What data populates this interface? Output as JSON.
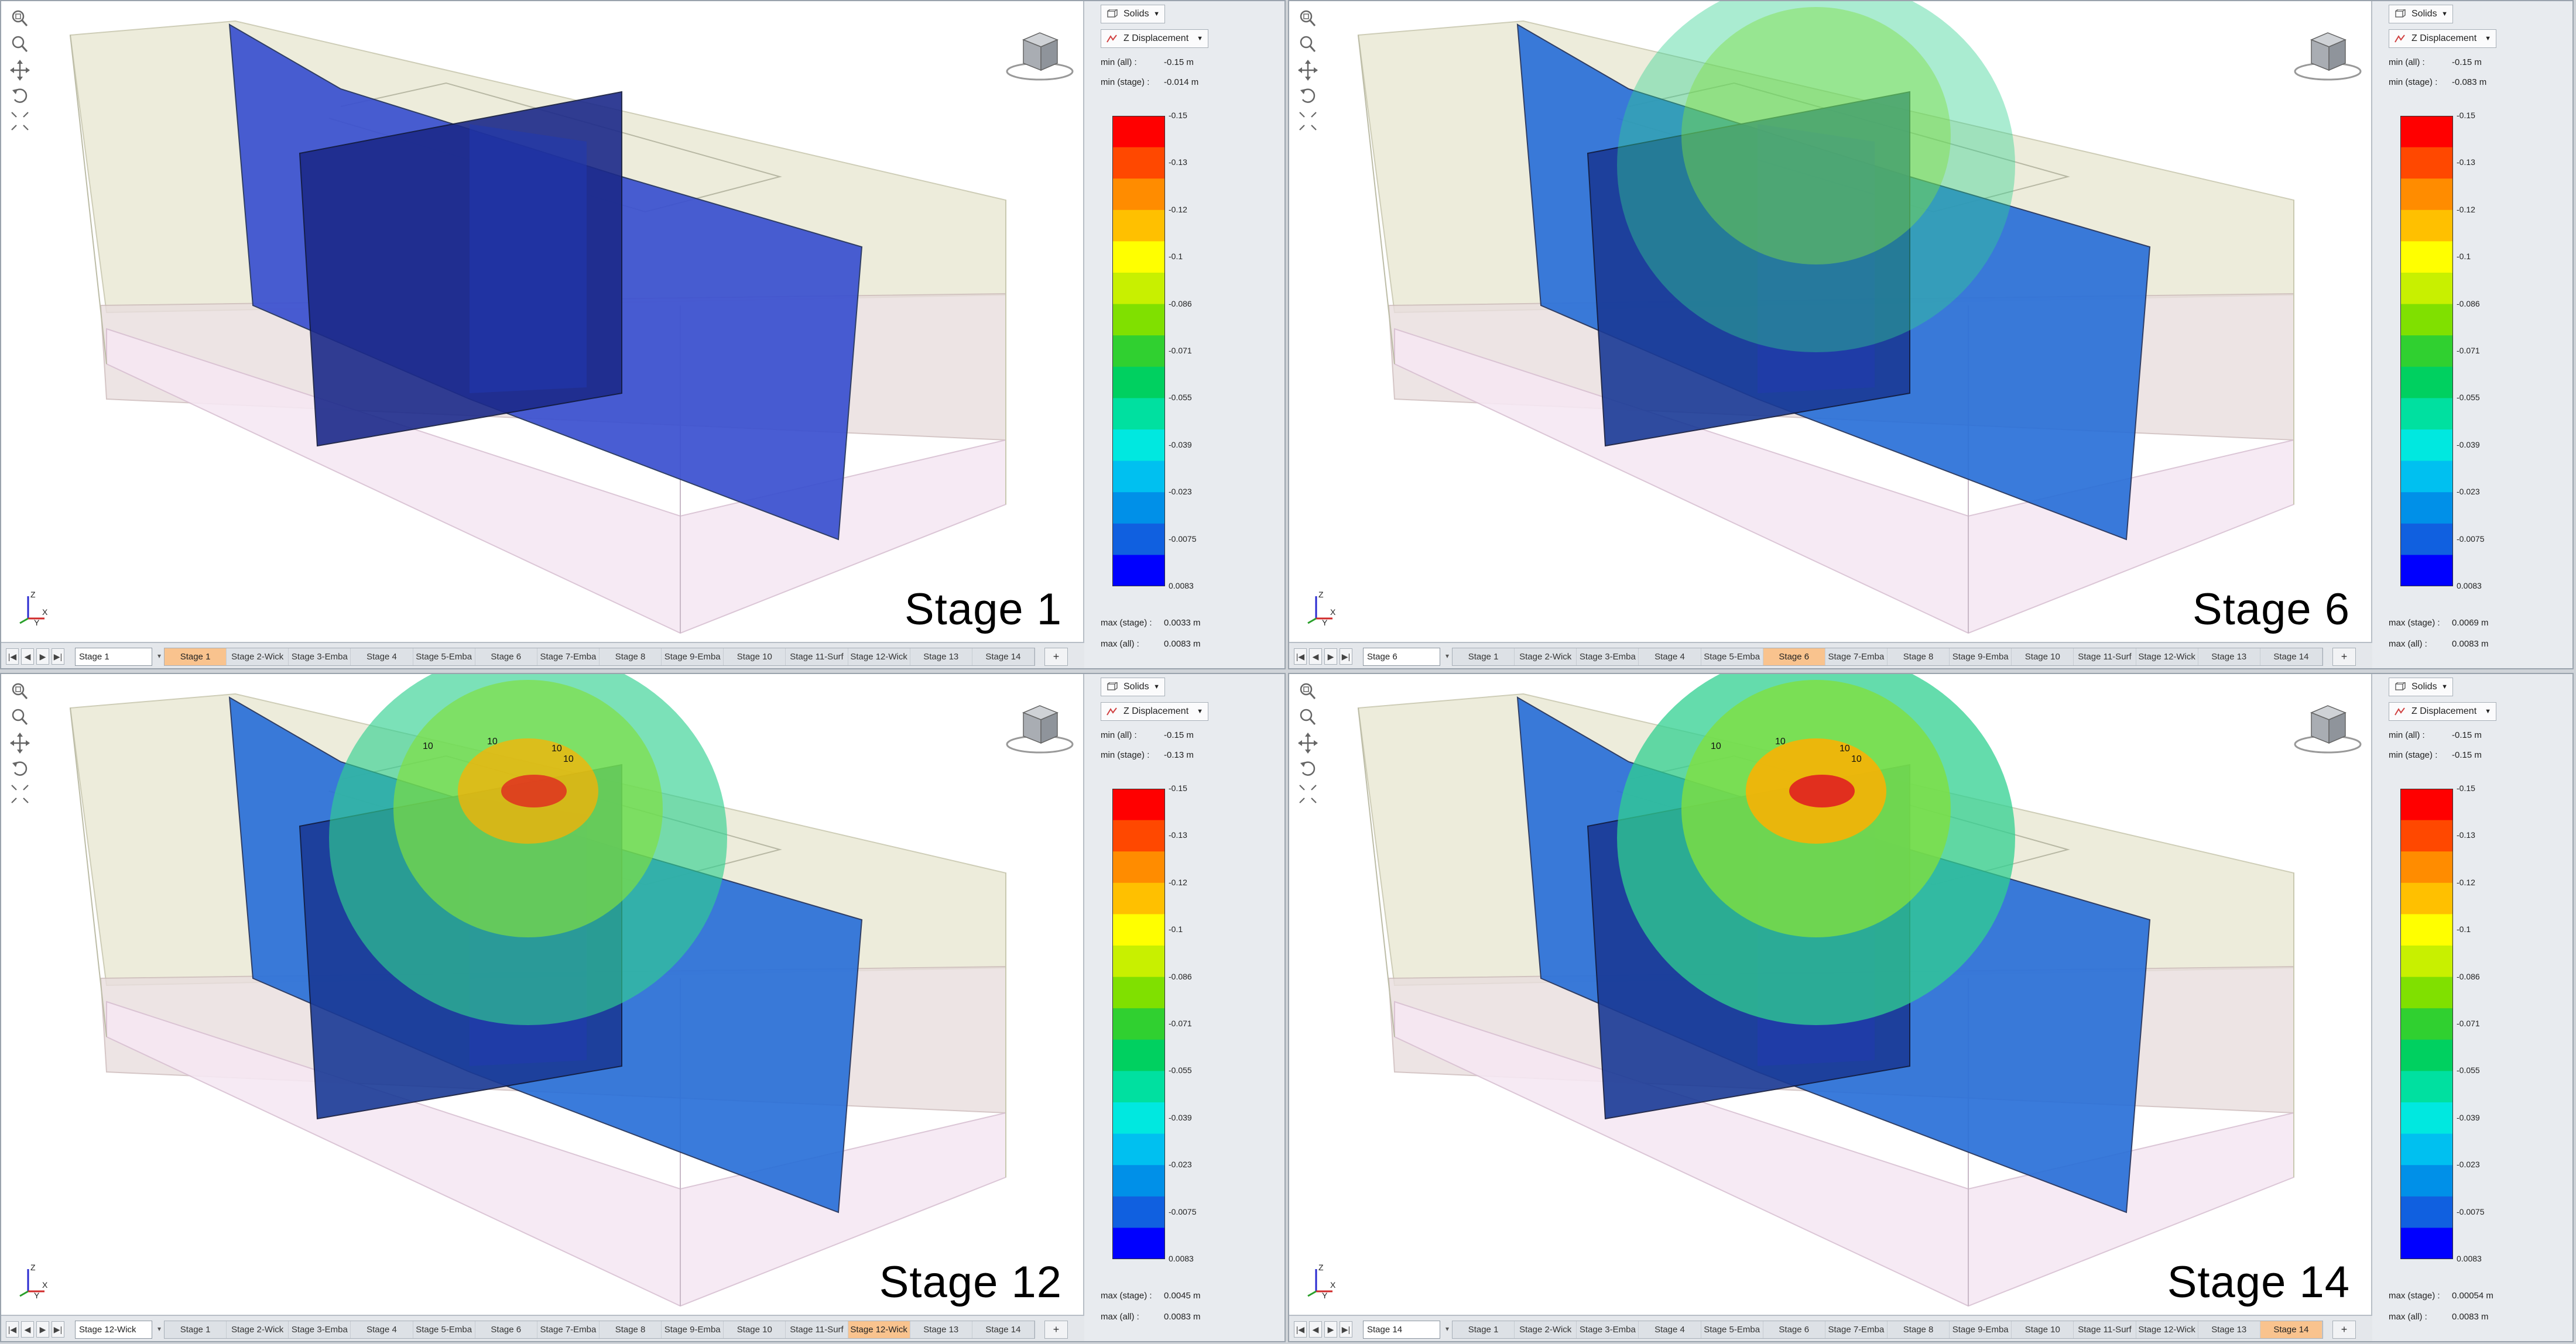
{
  "toolbar": {
    "view_type_label": "Solids",
    "contour_label": "Z Displacement"
  },
  "legend_ticks": [
    "-0.15",
    "-0.13",
    "-0.12",
    "-0.1",
    "-0.086",
    "-0.071",
    "-0.055",
    "-0.039",
    "-0.023",
    "-0.0075",
    "0.0083"
  ],
  "legend_colors": [
    "#ff0000",
    "#ff4800",
    "#ff8c00",
    "#ffc000",
    "#ffff00",
    "#c8f000",
    "#80e000",
    "#30d030",
    "#00d060",
    "#00e0a0",
    "#00e8e0",
    "#00c0f0",
    "#0090e8",
    "#1060e0",
    "#0000ff"
  ],
  "colors": {
    "active_tab": "#f9c38e",
    "ground_fill": "#ecebd8",
    "base_fill": "#f4e4f0"
  },
  "tabs": [
    "Stage 1",
    "Stage 2-Wick",
    "Stage 3-Emba",
    "Stage 4",
    "Stage 5-Emba",
    "Stage 6",
    "Stage 7-Emba",
    "Stage 8",
    "Stage 9-Emba",
    "Stage 10",
    "Stage 11-Surf",
    "Stage 12-Wick",
    "Stage 13",
    "Stage 14"
  ],
  "nav_buttons": [
    "|◀",
    "◀",
    "▶",
    "▶|"
  ],
  "tab_add_label": "+",
  "views": [
    {
      "stage_label": "Stage 1",
      "stage_box": "Stage 1",
      "active_tab": 0,
      "min_all_label": "min (all) :",
      "min_all": "-0.15 m",
      "min_stage_label": "min (stage) :",
      "min_stage": "-0.014 m",
      "max_stage_label": "max (stage) :",
      "max_stage": "0.0033 m",
      "max_all_label": "max (all) :",
      "max_all": "0.0083 m"
    },
    {
      "stage_label": "Stage 6",
      "stage_box": "Stage 6",
      "active_tab": 5,
      "min_all_label": "min (all) :",
      "min_all": "-0.15 m",
      "min_stage_label": "min (stage) :",
      "min_stage": "-0.083 m",
      "max_stage_label": "max (stage) :",
      "max_stage": "0.0069 m",
      "max_all_label": "max (all) :",
      "max_all": "0.0083 m"
    },
    {
      "stage_label": "Stage 12",
      "stage_box": "Stage 12-Wick",
      "active_tab": 11,
      "min_all_label": "min (all) :",
      "min_all": "-0.15 m",
      "min_stage_label": "min (stage) :",
      "min_stage": "-0.13 m",
      "max_stage_label": "max (stage) :",
      "max_stage": "0.0045 m",
      "max_all_label": "max (all) :",
      "max_all": "0.0083 m"
    },
    {
      "stage_label": "Stage 14",
      "stage_box": "Stage 14",
      "active_tab": 13,
      "min_all_label": "min (all) :",
      "min_all": "-0.15 m",
      "min_stage_label": "min (stage) :",
      "min_stage": "-0.15 m",
      "max_stage_label": "max (stage) :",
      "max_stage": "0.00054 m",
      "max_all_label": "max (all) :",
      "max_all": "0.0083 m"
    }
  ],
  "contour_labels": [
    "10",
    "10",
    "10",
    "10"
  ]
}
